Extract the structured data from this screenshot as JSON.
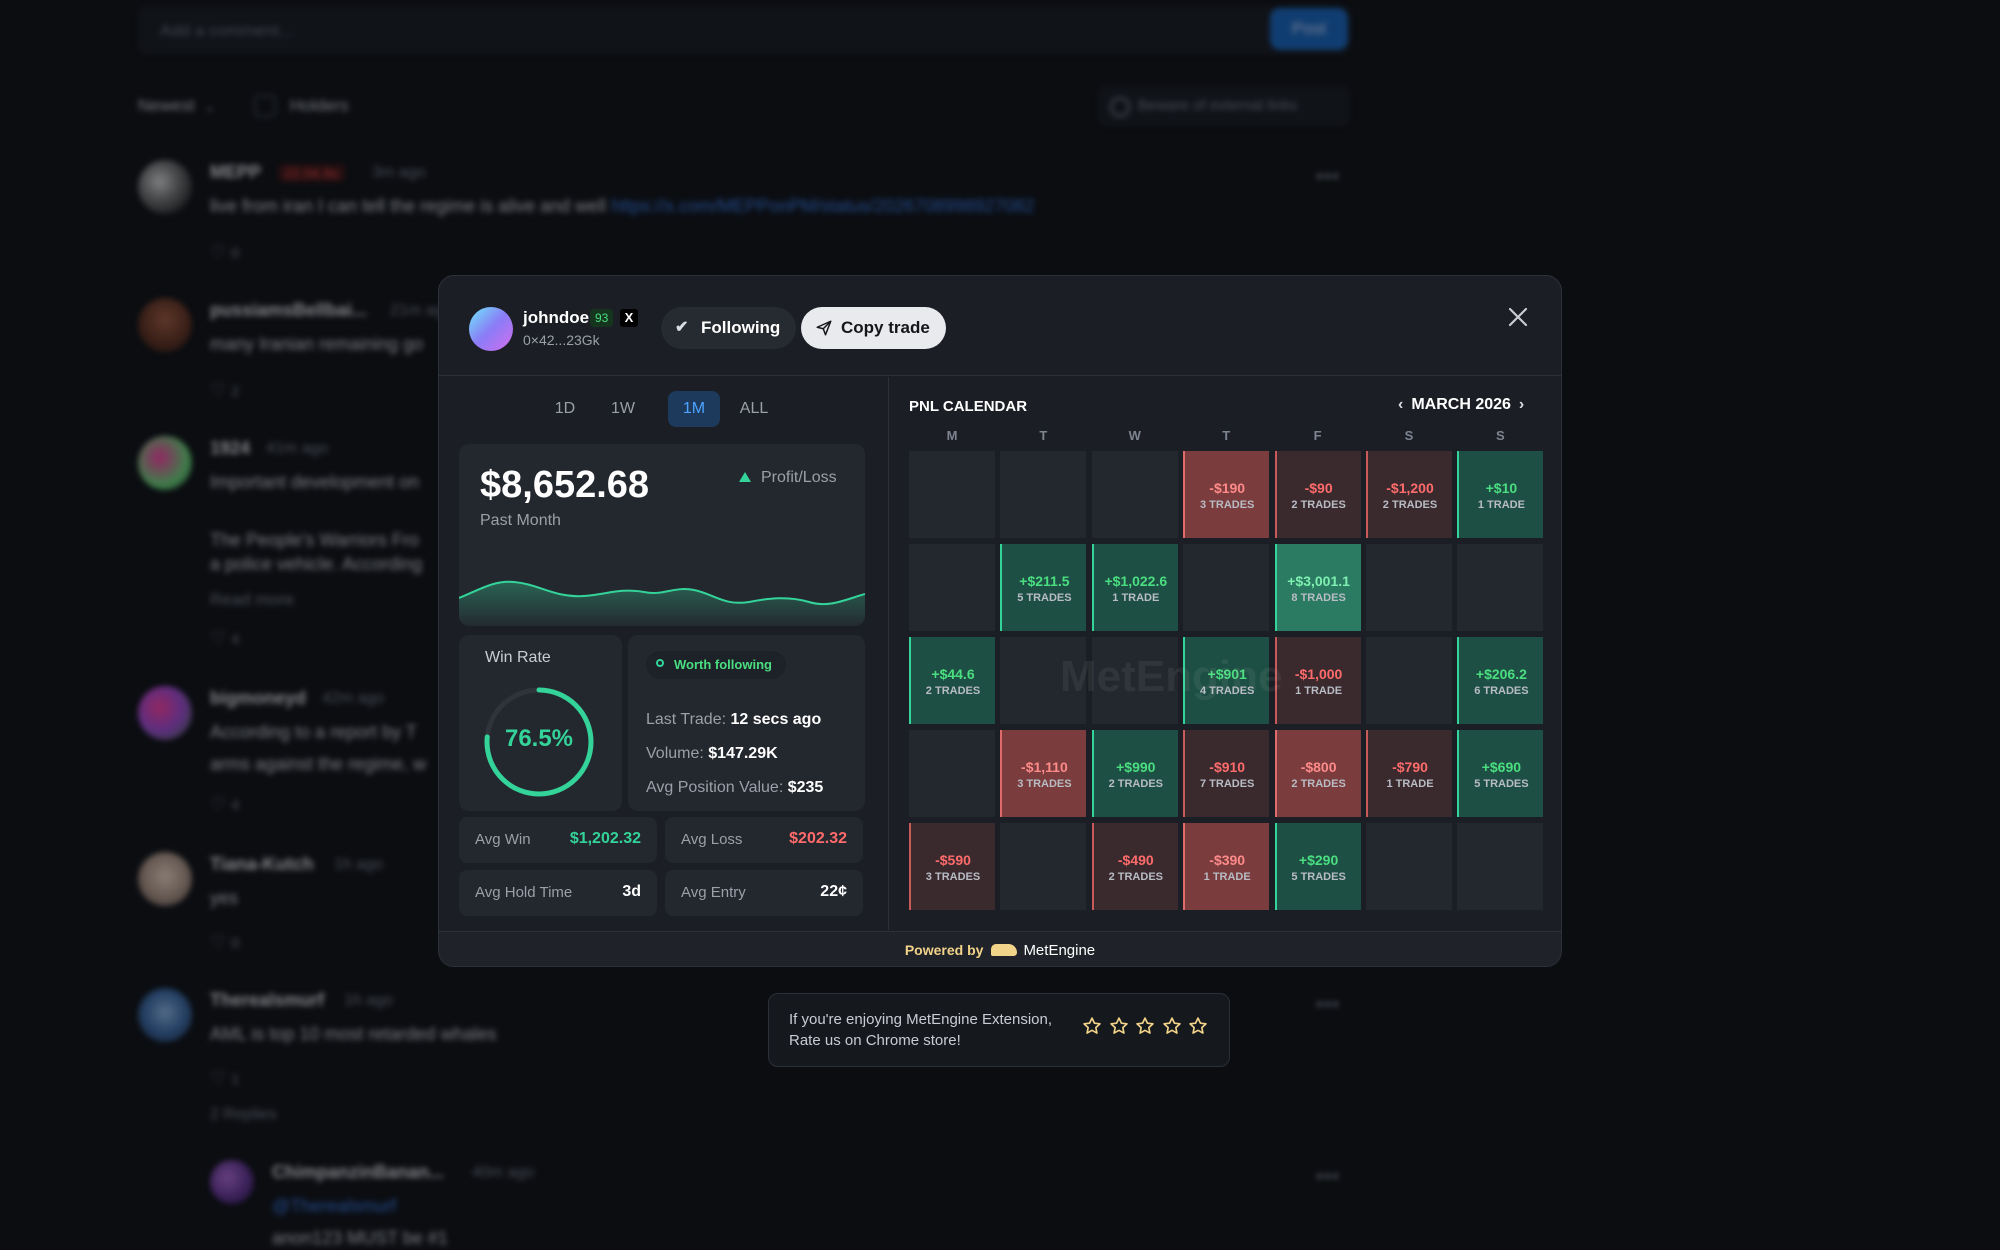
{
  "background": {
    "comment_placeholder": "Add a comment...",
    "post_label": "Post",
    "sort_label": "Newest",
    "holders_label": "Holders",
    "beware_label": "Beware of external links",
    "comments": [
      {
        "name": "MEPP",
        "tag": "22.04.9o",
        "time": "3m ago",
        "text": "live from iran I can tell the regime is alive and well ",
        "link": "https://x.com/MEPPonPM/status/2026708998927082",
        "likes": "0"
      },
      {
        "name": "pussiamsBellbai...",
        "time": "21m ago",
        "text": "many Iranian remaining go",
        "likes": "2"
      },
      {
        "name": "1924",
        "time": "41m ago",
        "text": "Important development on",
        "text2": "The People's Warriors Fro",
        "text3": "a police vehicle. According",
        "more": "Read more",
        "likes": "4"
      },
      {
        "name": "bigmoneyd",
        "time": "42m ago",
        "text": "According to a report by T",
        "text2": "arms against the regime, w",
        "likes": "4"
      },
      {
        "name": "Tiana-Kutch",
        "time": "1h ago",
        "text": "yes",
        "likes": "0"
      },
      {
        "name": "Therealsmurf",
        "time": "1h ago",
        "text": "AML is top 10 most retarded whales",
        "likes": "1",
        "replies": "2 Replies"
      },
      {
        "name": "ChimpanzinBanan...",
        "time": "40m ago",
        "text": "@Therealsmurf",
        "text2": "anon123 MUST be #1"
      }
    ]
  },
  "modal": {
    "username": "johndoe",
    "score": "93",
    "x_badge": "X",
    "address": "0×42...23Gk",
    "following_label": "Following",
    "copy_label": "Copy trade",
    "timeframes": [
      "1D",
      "1W",
      "1M",
      "ALL"
    ],
    "active_timeframe": "1M",
    "pnl": {
      "value": "$8,652.68",
      "period": "Past Month",
      "tag": "Profit/Loss"
    },
    "win_rate": {
      "title": "Win Rate",
      "value": "76.5%",
      "fraction": 0.765
    },
    "worth_label": "Worth following",
    "last_trade": {
      "k": "Last Trade:",
      "v": "12 secs ago"
    },
    "volume": {
      "k": "Volume:",
      "v": "$147.29K"
    },
    "avg_position": {
      "k": "Avg Position Value:",
      "v": "$235"
    },
    "stats": {
      "avg_win": {
        "k": "Avg Win",
        "v": "$1,202.32"
      },
      "avg_loss": {
        "k": "Avg Loss",
        "v": "$202.32"
      },
      "avg_hold": {
        "k": "Avg Hold Time",
        "v": "3d"
      },
      "avg_entry": {
        "k": "Avg Entry",
        "v": "22¢"
      }
    },
    "calendar": {
      "title": "PNL CALENDAR",
      "month": "MARCH 2026",
      "weekdays": [
        "M",
        "T",
        "W",
        "T",
        "F",
        "S",
        "S"
      ],
      "cells": [
        [
          null,
          null,
          null,
          {
            "amt": "-$190",
            "cnt": "3 TRADES",
            "s": "neg2"
          },
          {
            "amt": "-$90",
            "cnt": "2 TRADES",
            "s": "neg"
          },
          {
            "amt": "-$1,200",
            "cnt": "2 TRADES",
            "s": "neg"
          },
          {
            "amt": "+$10",
            "cnt": "1 TRADE",
            "s": "pos"
          }
        ],
        [
          null,
          {
            "amt": "+$211.5",
            "cnt": "5 TRADES",
            "s": "pos"
          },
          {
            "amt": "+$1,022.6",
            "cnt": "1 TRADE",
            "s": "pos"
          },
          null,
          {
            "amt": "+$3,001.1",
            "cnt": "8 TRADES",
            "s": "pos2"
          },
          null,
          null
        ],
        [
          {
            "amt": "+$44.6",
            "cnt": "2 TRADES",
            "s": "pos"
          },
          null,
          null,
          {
            "amt": "+$901",
            "cnt": "4 TRADES",
            "s": "pos"
          },
          {
            "amt": "-$1,000",
            "cnt": "1 TRADE",
            "s": "neg"
          },
          null,
          {
            "amt": "+$206.2",
            "cnt": "6 TRADES",
            "s": "pos"
          }
        ],
        [
          null,
          {
            "amt": "-$1,110",
            "cnt": "3 TRADES",
            "s": "neg2"
          },
          {
            "amt": "+$990",
            "cnt": "2 TRADES",
            "s": "pos"
          },
          {
            "amt": "-$910",
            "cnt": "7 TRADES",
            "s": "neg"
          },
          {
            "amt": "-$800",
            "cnt": "2 TRADES",
            "s": "neg2"
          },
          {
            "amt": "-$790",
            "cnt": "1 TRADE",
            "s": "neg"
          },
          {
            "amt": "+$690",
            "cnt": "5 TRADES",
            "s": "pos"
          }
        ],
        [
          {
            "amt": "-$590",
            "cnt": "3 TRADES",
            "s": "neg"
          },
          null,
          {
            "amt": "-$490",
            "cnt": "2 TRADES",
            "s": "neg"
          },
          {
            "amt": "-$390",
            "cnt": "1 TRADE",
            "s": "neg2"
          },
          {
            "amt": "+$290",
            "cnt": "5 TRADES",
            "s": "pos"
          },
          null,
          null
        ]
      ]
    },
    "watermark": "MetEngine",
    "footer": {
      "powered": "Powered by",
      "brand": "MetEngine"
    }
  },
  "rating": {
    "line1": "If you're enjoying MetEngine Extension,",
    "line2": "Rate us on Chrome store!",
    "stars": 5
  },
  "colors": {
    "profit": "#34d399",
    "loss": "#ff6b6b",
    "accent": "#4da3ff"
  }
}
